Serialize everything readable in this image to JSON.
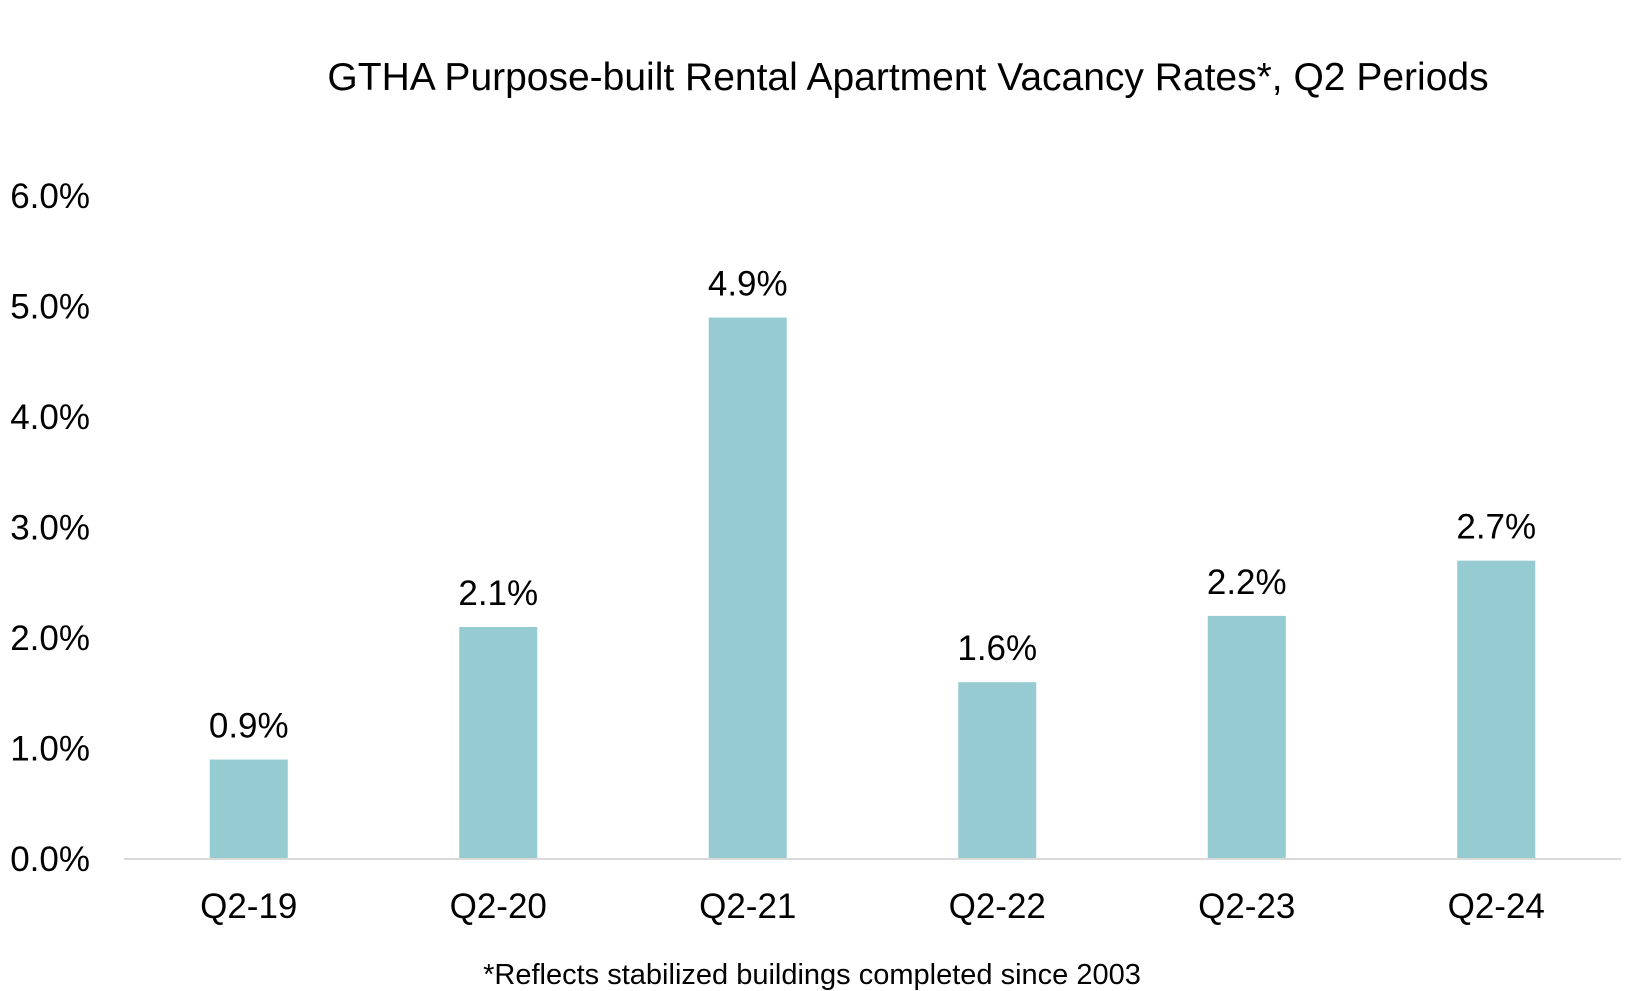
{
  "chart_data": {
    "type": "bar",
    "title": "GTHA Purpose-built Rental Apartment Vacancy Rates*, Q2 Periods",
    "xlabel": "",
    "ylabel": "",
    "categories": [
      "Q2-19",
      "Q2-20",
      "Q2-21",
      "Q2-22",
      "Q2-23",
      "Q2-24"
    ],
    "values": [
      0.9,
      2.1,
      4.9,
      1.6,
      2.2,
      2.7
    ],
    "data_labels": [
      "0.9%",
      "2.1%",
      "4.9%",
      "1.6%",
      "2.2%",
      "2.7%"
    ],
    "ylim": [
      0,
      6
    ],
    "yticks": [
      0,
      1,
      2,
      3,
      4,
      5,
      6
    ],
    "ytick_labels": [
      "0.0%",
      "1.0%",
      "2.0%",
      "3.0%",
      "4.0%",
      "5.0%",
      "6.0%"
    ],
    "grid": false,
    "legend": "none",
    "footnote": "*Reflects stabilized buildings completed since 2003",
    "colors": {
      "bar": "#95CBD1",
      "axis": "#D9D9D9",
      "text": "#000000"
    }
  }
}
